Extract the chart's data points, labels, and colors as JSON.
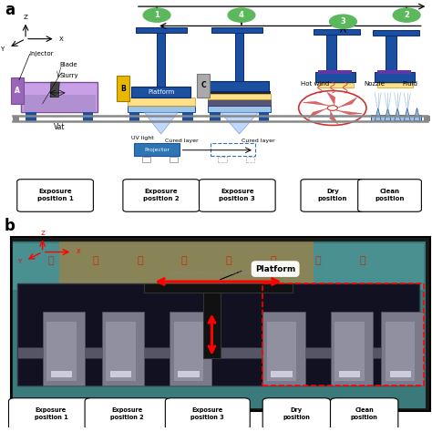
{
  "fig_width": 4.74,
  "fig_height": 4.74,
  "dpi": 100,
  "bg_color": "#ffffff",
  "colors": {
    "blue_dark": "#1b4fa0",
    "blue_med": "#2e75b6",
    "blue_light": "#9dc3e6",
    "blue_lighter": "#c5dff5",
    "purple_dark": "#5b2d8e",
    "purple_light": "#9966cc",
    "vat_fill": "#c8a0e8",
    "vat_border": "#7a5090",
    "yellow": "#ffc000",
    "yellow_light": "#ffe08a",
    "gray_dark": "#666688",
    "gray_med": "#999999",
    "gray_light": "#cccccc",
    "green_circle": "#5cb85c",
    "blade_color": "#444444",
    "fan_red": "#cc3333",
    "fan_blue": "#6699cc",
    "track_gray": "#aaaaaa",
    "proj_blue": "#2e75b6",
    "uv_blue": "#aaccff"
  },
  "positions_labels_a": [
    "Exposure\nposition 1",
    "Exposure\nposition 2",
    "Exposure\nposition 3",
    "Dry\nposition",
    "Clean\nposition"
  ],
  "positions_labels_b": [
    "Exposure\nposition 1",
    "Exposure\nposition 2",
    "Exposure\nposition 3",
    "Dry\nposition",
    "Clean\nposition"
  ],
  "platform_label": "Platform"
}
